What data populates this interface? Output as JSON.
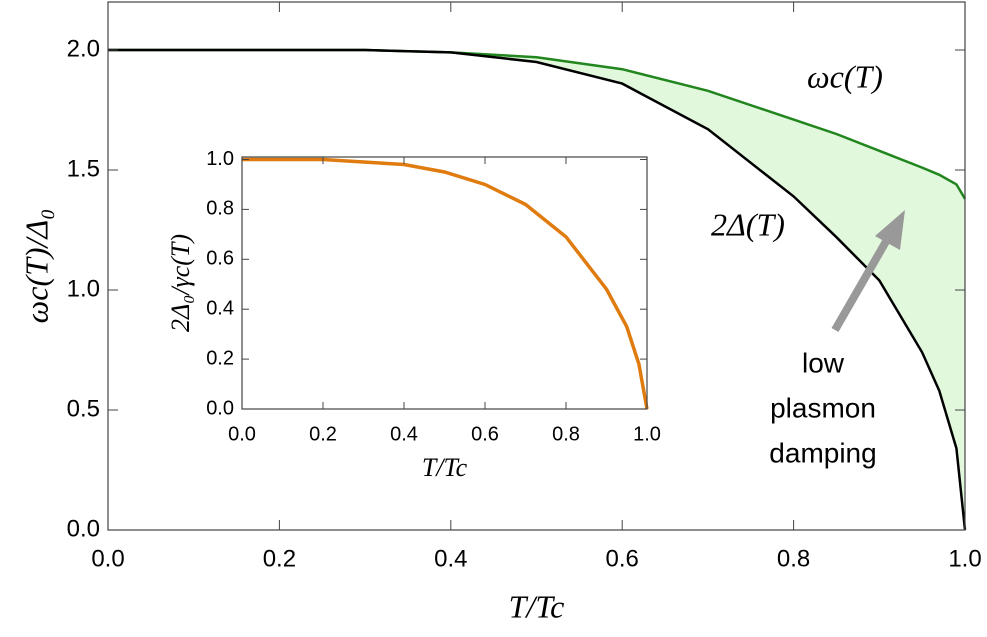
{
  "chart_data": [
    {
      "type": "line",
      "x": [
        0,
        0.1,
        0.2,
        0.3,
        0.4,
        0.5,
        0.6,
        0.7,
        0.8,
        0.85,
        0.9,
        0.95,
        0.97,
        0.99,
        1.0
      ],
      "series": [
        {
          "name": "ωc(T)",
          "color": "#22861e",
          "values": [
            2,
            2,
            2,
            2,
            1.99,
            1.97,
            1.92,
            1.83,
            1.71,
            1.65,
            1.58,
            1.51,
            1.48,
            1.44,
            1.38
          ]
        },
        {
          "name": "2Δ(T)",
          "color": "#000000",
          "values": [
            2,
            2,
            2,
            2,
            1.99,
            1.95,
            1.86,
            1.67,
            1.39,
            1.22,
            1.04,
            0.74,
            0.58,
            0.34,
            0
          ]
        }
      ],
      "fill_between_color": "#e1f8dc",
      "xlim": [
        0,
        1
      ],
      "ylim": [
        0,
        2.2
      ],
      "xticks": [
        {
          "value": 0,
          "label": "0.0"
        },
        0.2,
        0.4,
        0.6,
        0.8,
        {
          "value": 1,
          "label": "1.0"
        }
      ],
      "yticks": [
        {
          "value": 0,
          "label": "0.0"
        },
        0.5,
        {
          "value": 1,
          "label": "1.0"
        },
        1.5,
        {
          "value": 2,
          "label": "2.0"
        }
      ],
      "xlabel": "T/Tc",
      "ylabel": "ωc(T)/Δ₀",
      "annotations": [
        "low",
        "plasmon",
        "damping"
      ]
    },
    {
      "type": "line",
      "x": [
        0,
        0.1,
        0.2,
        0.3,
        0.4,
        0.5,
        0.6,
        0.7,
        0.8,
        0.9,
        0.95,
        0.98,
        1.0
      ],
      "series": [
        {
          "color": "#e07b10",
          "values": [
            1,
            1,
            1,
            0.99,
            0.98,
            0.95,
            0.9,
            0.82,
            0.69,
            0.48,
            0.33,
            0.18,
            0
          ]
        }
      ],
      "xlim": [
        0,
        1
      ],
      "ylim": [
        0,
        1.01
      ],
      "xticks": [
        {
          "value": 0,
          "label": "0.0"
        },
        0.2,
        0.4,
        0.6,
        0.8,
        {
          "value": 1,
          "label": "1.0"
        }
      ],
      "yticks": [
        {
          "value": 0,
          "label": "0.0"
        },
        0.2,
        0.4,
        0.6,
        0.8,
        {
          "value": 1,
          "label": "1.0"
        }
      ],
      "xlabel": "T/Tc",
      "ylabel": "2Δ₀/γc(T)"
    }
  ]
}
